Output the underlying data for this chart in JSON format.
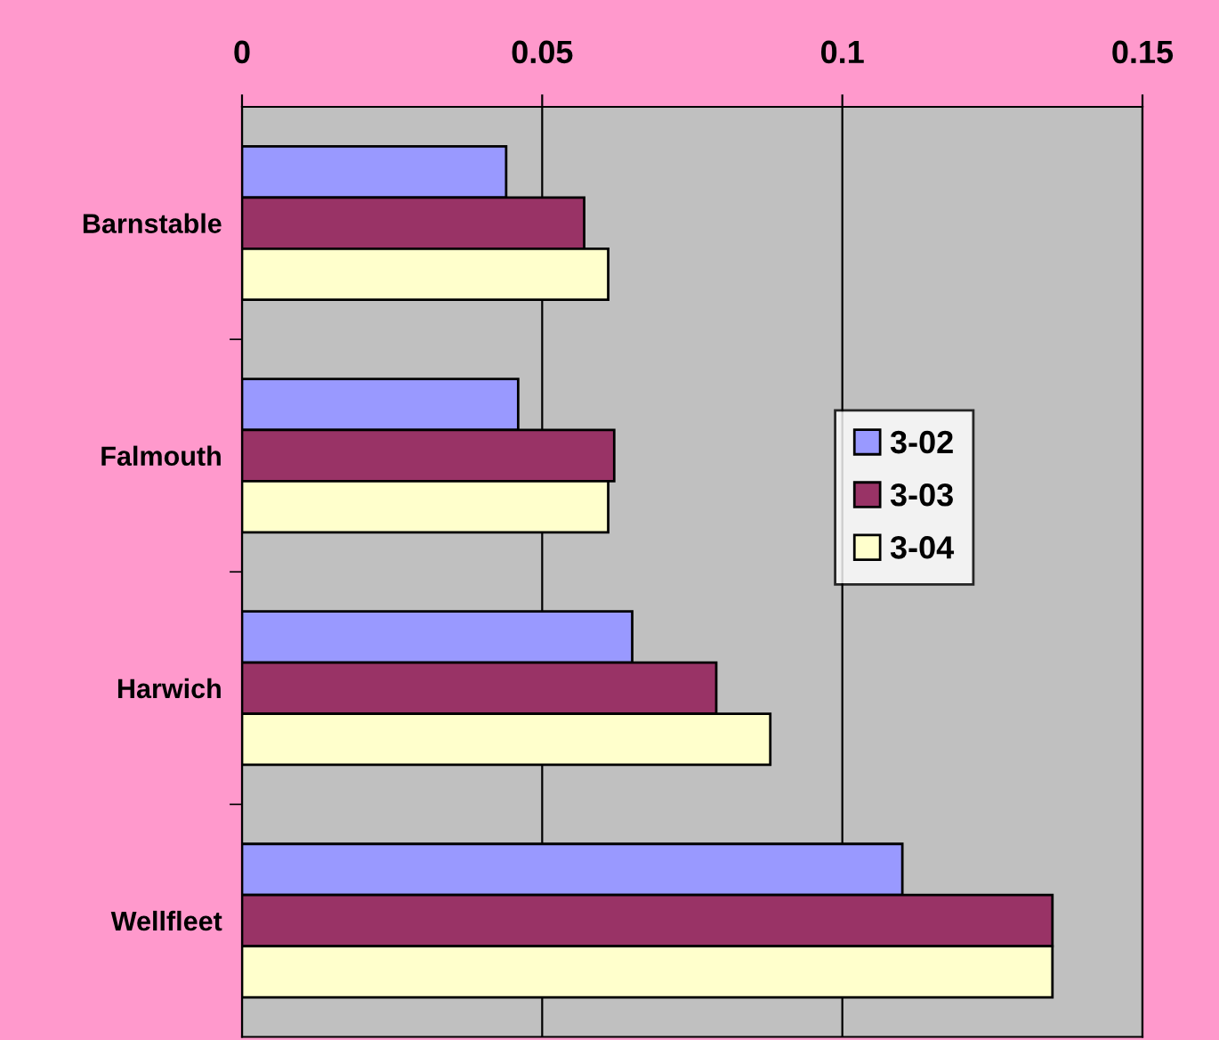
{
  "chart_data": {
    "type": "bar",
    "orientation": "horizontal",
    "categories": [
      "Barnstable",
      "Falmouth",
      "Harwich",
      "Wellfleet"
    ],
    "series": [
      {
        "name": "3-02",
        "color": "#9999ff",
        "values": [
          0.044,
          0.046,
          0.065,
          0.11
        ]
      },
      {
        "name": "3-03",
        "color": "#993366",
        "values": [
          0.057,
          0.062,
          0.079,
          0.135
        ]
      },
      {
        "name": "3-04",
        "color": "#ffffcc",
        "values": [
          0.061,
          0.061,
          0.088,
          0.135
        ]
      }
    ],
    "xlim": [
      0,
      0.15
    ],
    "xticks": [
      0,
      0.05,
      0.1,
      0.15
    ],
    "grid": "x",
    "legend": "right"
  }
}
